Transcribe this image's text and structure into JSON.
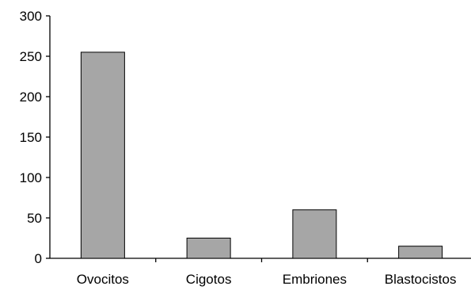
{
  "chart_data": {
    "type": "bar",
    "title": "",
    "xlabel": "",
    "ylabel": "",
    "categories": [
      "Ovocitos",
      "Cigotos",
      "Embriones",
      "Blastocistos"
    ],
    "values": [
      255,
      25,
      60,
      15
    ],
    "ylim": [
      0,
      300
    ],
    "yticks": [
      "0",
      "50",
      "100",
      "150",
      "200",
      "250",
      "300"
    ],
    "grid": false,
    "legend": "none",
    "bar_color": "#a6a6a6",
    "bar_stroke": "#000000"
  }
}
